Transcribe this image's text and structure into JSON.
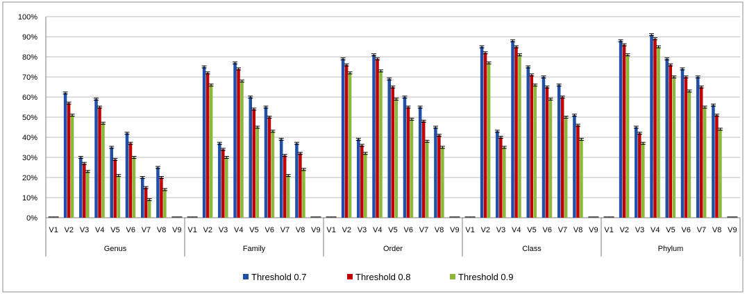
{
  "chart_data": {
    "type": "bar",
    "title": "",
    "xlabel": "",
    "ylabel": "",
    "ylim": [
      0,
      1
    ],
    "yticks": [
      "0%",
      "10%",
      "20%",
      "30%",
      "40%",
      "50%",
      "60%",
      "70%",
      "80%",
      "90%",
      "100%"
    ],
    "grid": true,
    "legend_position": "bottom",
    "groups": [
      "Genus",
      "Family",
      "Order",
      "Class",
      "Phylum"
    ],
    "categories": [
      "V1",
      "V2",
      "V3",
      "V4",
      "V5",
      "V6",
      "V7",
      "V8",
      "V9"
    ],
    "series": [
      {
        "name": "Threshold 0.7",
        "color": "#1f4fa8",
        "values": {
          "Genus": [
            0.0,
            0.62,
            0.3,
            0.59,
            0.35,
            0.42,
            0.2,
            0.25,
            0.0
          ],
          "Family": [
            0.0,
            0.75,
            0.37,
            0.77,
            0.6,
            0.55,
            0.39,
            0.37,
            0.0
          ],
          "Order": [
            0.0,
            0.79,
            0.39,
            0.81,
            0.69,
            0.6,
            0.55,
            0.45,
            0.0
          ],
          "Class": [
            0.0,
            0.85,
            0.43,
            0.88,
            0.75,
            0.7,
            0.66,
            0.51,
            0.0
          ],
          "Phylum": [
            0.0,
            0.88,
            0.45,
            0.91,
            0.79,
            0.74,
            0.7,
            0.56,
            0.0
          ]
        }
      },
      {
        "name": "Threshold 0.8",
        "color": "#c00000",
        "values": {
          "Genus": [
            0.0,
            0.57,
            0.27,
            0.55,
            0.29,
            0.37,
            0.15,
            0.2,
            0.0
          ],
          "Family": [
            0.0,
            0.72,
            0.34,
            0.74,
            0.54,
            0.5,
            0.31,
            0.32,
            0.0
          ],
          "Order": [
            0.0,
            0.76,
            0.36,
            0.79,
            0.65,
            0.55,
            0.48,
            0.41,
            0.0
          ],
          "Class": [
            0.0,
            0.82,
            0.4,
            0.85,
            0.71,
            0.65,
            0.6,
            0.46,
            0.0
          ],
          "Phylum": [
            0.0,
            0.86,
            0.42,
            0.89,
            0.76,
            0.7,
            0.65,
            0.51,
            0.0
          ]
        }
      },
      {
        "name": "Threshold 0.9",
        "color": "#8bb83a",
        "values": {
          "Genus": [
            0.0,
            0.51,
            0.23,
            0.47,
            0.21,
            0.3,
            0.09,
            0.14,
            0.0
          ],
          "Family": [
            0.0,
            0.66,
            0.3,
            0.68,
            0.45,
            0.43,
            0.21,
            0.24,
            0.0
          ],
          "Order": [
            0.0,
            0.72,
            0.32,
            0.73,
            0.59,
            0.49,
            0.38,
            0.35,
            0.0
          ],
          "Class": [
            0.0,
            0.77,
            0.35,
            0.81,
            0.66,
            0.59,
            0.5,
            0.39,
            0.0
          ],
          "Phylum": [
            0.0,
            0.81,
            0.37,
            0.85,
            0.7,
            0.63,
            0.55,
            0.44,
            0.0
          ]
        }
      }
    ]
  }
}
